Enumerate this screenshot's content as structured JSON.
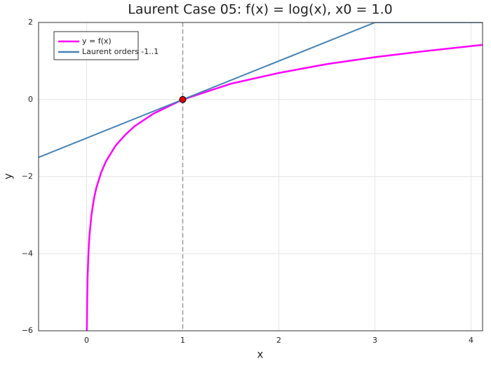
{
  "chart_data": {
    "type": "line",
    "title": "Laurent Case 05: f(x) = log(x), x0 = 1.0",
    "xlabel": "x",
    "ylabel": "y",
    "xlim": [
      -0.5,
      4.12
    ],
    "ylim": [
      -6,
      2
    ],
    "xticks": [
      0,
      1,
      2,
      3,
      4
    ],
    "yticks": [
      {
        "value": -6,
        "label": "−6"
      },
      {
        "value": -4,
        "label": "−4"
      },
      {
        "value": -2,
        "label": "−2"
      },
      0,
      2
    ],
    "grid": true,
    "legend": "upper left",
    "series": [
      {
        "name": "y = f(x)",
        "color": "#ff00ff",
        "x": [
          0.0025,
          0.005,
          0.01,
          0.02,
          0.03,
          0.05,
          0.075,
          0.1,
          0.15,
          0.2,
          0.3,
          0.4,
          0.5,
          0.7,
          1,
          1.5,
          2,
          2.5,
          3,
          3.5,
          4.12
        ],
        "values": [
          -5.99,
          -5.3,
          -4.61,
          -3.91,
          -3.51,
          -3.0,
          -2.59,
          -2.3,
          -1.9,
          -1.61,
          -1.2,
          -0.92,
          -0.69,
          -0.36,
          0,
          0.41,
          0.69,
          0.92,
          1.1,
          1.25,
          1.42
        ]
      },
      {
        "name": "Laurent orders -1..1",
        "color": "#4682b4",
        "x": [
          -0.5,
          3,
          4.12
        ],
        "values": [
          -1.5,
          2,
          2
        ]
      }
    ],
    "vline": {
      "x": 1,
      "color": "#999999"
    },
    "marker": {
      "x": 1,
      "y": 0,
      "color": "#e00000"
    }
  }
}
